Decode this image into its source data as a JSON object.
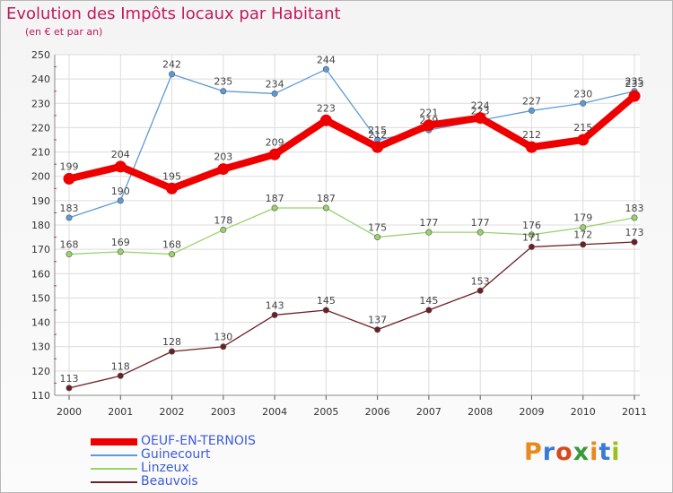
{
  "title": "Evolution des Impôts locaux par Habitant",
  "subtitle": "(en € et par an)",
  "logo": {
    "text": "Proxiti",
    "colors": [
      "#e8891d",
      "#3a7bd5",
      "#d64a1b",
      "#3a9a3a",
      "#e8891d",
      "#3a7bd5",
      "#9bc01c"
    ]
  },
  "chart_data": {
    "type": "line",
    "title": "Evolution des Impôts locaux par Habitant",
    "subtitle": "(en € et par an)",
    "xlabel": "",
    "ylabel": "",
    "x": [
      "2000",
      "2001",
      "2002",
      "2003",
      "2004",
      "2005",
      "2006",
      "2007",
      "2008",
      "2009",
      "2010",
      "2011"
    ],
    "ylim": [
      110,
      250
    ],
    "yticks": [
      110,
      120,
      130,
      140,
      150,
      160,
      170,
      180,
      190,
      200,
      210,
      220,
      230,
      240,
      250
    ],
    "grid": true,
    "legend_position": "bottom-left",
    "series": [
      {
        "name": "OEUF-EN-TERNOIS",
        "color": "#ee0000",
        "emphasis": true,
        "values": [
          199,
          204,
          195,
          203,
          209,
          223,
          212,
          221,
          224,
          212,
          215,
          233
        ]
      },
      {
        "name": "Guinecourt",
        "color": "#5c9bd6",
        "emphasis": false,
        "values": [
          183,
          190,
          242,
          235,
          234,
          244,
          215,
          219,
          223,
          227,
          230,
          235
        ]
      },
      {
        "name": "Linzeux",
        "color": "#98d36b",
        "emphasis": false,
        "values": [
          168,
          169,
          168,
          178,
          187,
          187,
          175,
          177,
          177,
          176,
          179,
          183
        ]
      },
      {
        "name": "Beauvois",
        "color": "#6e1f24",
        "emphasis": false,
        "values": [
          113,
          118,
          128,
          130,
          143,
          145,
          137,
          145,
          153,
          171,
          172,
          173
        ]
      }
    ]
  }
}
